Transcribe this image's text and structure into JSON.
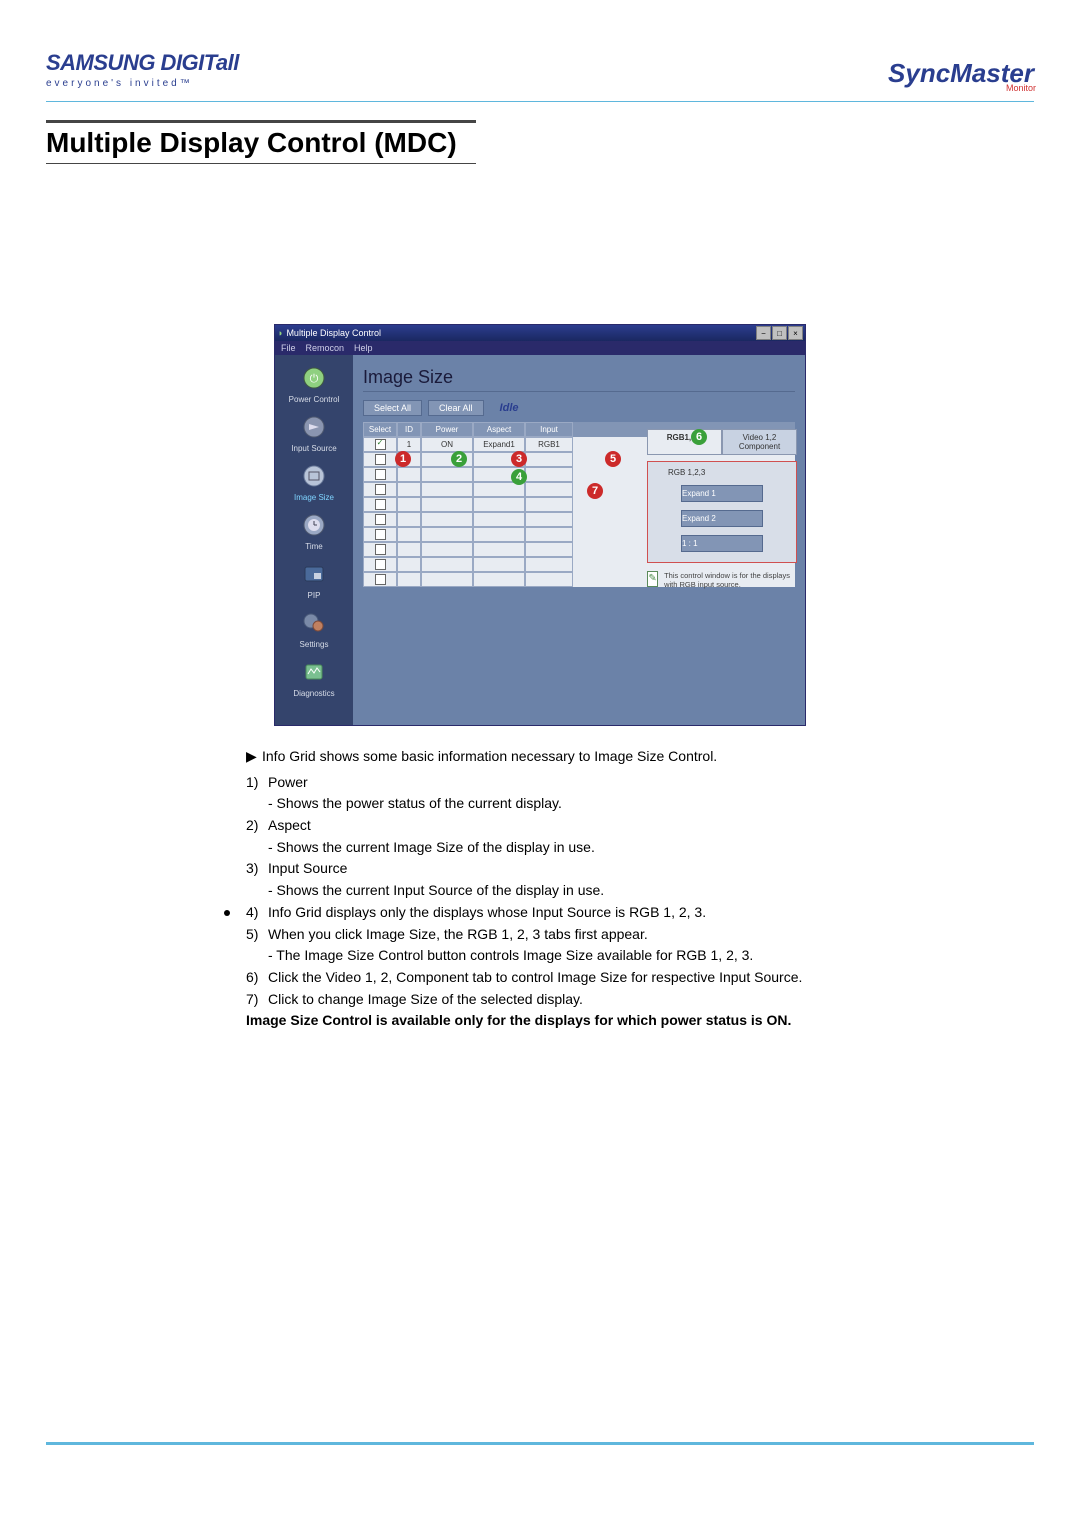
{
  "header": {
    "logo_top": "SAMSUNG DIGITall",
    "logo_bottom": "everyone's invited™",
    "syncmaster": "SyncMaster",
    "syncmaster_sub": "Monitor"
  },
  "page_title": "Multiple Display Control (MDC)",
  "app": {
    "window_title": "Multiple Display Control",
    "menus": [
      "File",
      "Remocon",
      "Help"
    ],
    "sidebar": [
      {
        "label": "Power Control"
      },
      {
        "label": "Input Source"
      },
      {
        "label": "Image Size"
      },
      {
        "label": "Time"
      },
      {
        "label": "PIP"
      },
      {
        "label": "Settings"
      },
      {
        "label": "Diagnostics"
      }
    ],
    "panel_title": "Image Size",
    "buttons": {
      "select_all": "Select All",
      "clear_all": "Clear All",
      "idle": "Idle"
    },
    "columns": {
      "select": "Select",
      "id": "ID",
      "power": "Power",
      "aspect": "Aspect",
      "input": "Input"
    },
    "rows": [
      {
        "id": "1",
        "power": "ON",
        "aspect": "Expand1",
        "input": "RGB1",
        "checked": true
      },
      {
        "id": "",
        "power": "",
        "aspect": "",
        "input": "",
        "checked": false
      },
      {
        "id": "",
        "power": "",
        "aspect": "",
        "input": "",
        "checked": false
      },
      {
        "id": "",
        "power": "",
        "aspect": "",
        "input": "",
        "checked": false
      },
      {
        "id": "",
        "power": "",
        "aspect": "",
        "input": "",
        "checked": false
      },
      {
        "id": "",
        "power": "",
        "aspect": "",
        "input": "",
        "checked": false
      },
      {
        "id": "",
        "power": "",
        "aspect": "",
        "input": "",
        "checked": false
      },
      {
        "id": "",
        "power": "",
        "aspect": "",
        "input": "",
        "checked": false
      },
      {
        "id": "",
        "power": "",
        "aspect": "",
        "input": "",
        "checked": false
      },
      {
        "id": "",
        "power": "",
        "aspect": "",
        "input": "",
        "checked": false
      }
    ],
    "tabs": {
      "rgb": "RGB1,2,3",
      "video": "Video 1,2\nComponent"
    },
    "rp_label": "RGB 1,2,3",
    "rp_buttons": [
      "Expand 1",
      "Expand 2",
      "1 : 1"
    ],
    "rp_note": "This control window is for the displays with RGB input source.",
    "callouts": {
      "c1": "1",
      "c2": "2",
      "c3": "3",
      "c4": "4",
      "c5": "5",
      "c6": "6",
      "c7": "7"
    }
  },
  "explain": {
    "intro": "Info Grid shows some basic information necessary to Image Size Control.",
    "items": {
      "i1": "Power",
      "i1s": "- Shows the power status of the current display.",
      "i2": "Aspect",
      "i2s": "- Shows the current Image Size of the display in use.",
      "i3": "Input Source",
      "i3s": "- Shows the current Input Source of the display in use.",
      "i4": "Info Grid displays only the displays whose Input Source is RGB 1, 2, 3.",
      "i5": "When you click Image Size, the RGB 1, 2, 3 tabs first appear.",
      "i5s": "- The Image Size Control button controls Image Size available for RGB 1, 2, 3.",
      "i6": "Click the Video 1, 2, Component tab to control Image Size for respective Input Source.",
      "i7": "Click to change Image Size of the selected display.",
      "note": "Image Size Control is available only for the displays for which power status is ON."
    }
  }
}
